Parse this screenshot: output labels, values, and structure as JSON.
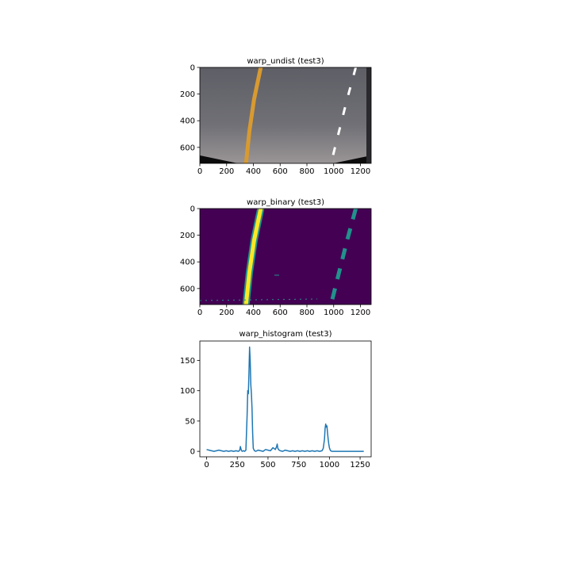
{
  "chart_data": [
    {
      "type": "image",
      "title": "warp_undist (test3)",
      "xlim": [
        0,
        1280
      ],
      "ylim": [
        720,
        0
      ],
      "xticks": [
        0,
        200,
        400,
        600,
        800,
        1000,
        1200
      ],
      "yticks": [
        0,
        200,
        400,
        600
      ],
      "colors": {
        "road_top": "#5b5b62",
        "road_bottom": "#8a8a90",
        "left_lane": "#d89a30",
        "right_lane": "#ffffff",
        "edge": "#111111"
      },
      "left_lane_x": [
        {
          "y": 0,
          "x": 455
        },
        {
          "y": 240,
          "x": 405
        },
        {
          "y": 480,
          "x": 370
        },
        {
          "y": 720,
          "x": 345
        }
      ],
      "right_lane_x": [
        {
          "y": 0,
          "x": 1165
        },
        {
          "y": 240,
          "x": 1100
        },
        {
          "y": 480,
          "x": 1040
        },
        {
          "y": 720,
          "x": 980
        }
      ]
    },
    {
      "type": "heatmap",
      "title": "warp_binary (test3)",
      "xlim": [
        0,
        1280
      ],
      "ylim": [
        720,
        0
      ],
      "xticks": [
        0,
        200,
        400,
        600,
        800,
        1000,
        1200
      ],
      "yticks": [
        0,
        200,
        400,
        600
      ],
      "colors": {
        "background": "#440154",
        "mid": "#21918c",
        "high": "#fde725"
      },
      "left_lane_x": [
        {
          "y": 0,
          "x": 455
        },
        {
          "y": 240,
          "x": 405
        },
        {
          "y": 480,
          "x": 370
        },
        {
          "y": 720,
          "x": 345
        }
      ],
      "right_lane_x": [
        {
          "y": 0,
          "x": 1165
        },
        {
          "y": 240,
          "x": 1100
        },
        {
          "y": 480,
          "x": 1040
        },
        {
          "y": 720,
          "x": 980
        }
      ]
    },
    {
      "type": "line",
      "title": "warp_histogram (test3)",
      "xlim": [
        -55,
        1340
      ],
      "ylim": [
        -9,
        182
      ],
      "xticks": [
        0,
        250,
        500,
        750,
        1000,
        1250
      ],
      "yticks": [
        0,
        50,
        100,
        150
      ],
      "color": "#1f77b4",
      "x": [
        0,
        20,
        40,
        60,
        80,
        100,
        120,
        140,
        160,
        180,
        200,
        220,
        240,
        260,
        270,
        275,
        280,
        285,
        290,
        300,
        310,
        320,
        330,
        335,
        340,
        345,
        350,
        355,
        360,
        365,
        370,
        375,
        380,
        390,
        400,
        420,
        440,
        460,
        480,
        500,
        520,
        540,
        560,
        570,
        575,
        580,
        590,
        600,
        620,
        640,
        660,
        680,
        700,
        720,
        740,
        760,
        780,
        800,
        820,
        840,
        860,
        880,
        900,
        920,
        940,
        950,
        960,
        965,
        970,
        975,
        980,
        985,
        990,
        995,
        1000,
        1005,
        1010,
        1020,
        1040,
        1060,
        1080,
        1100,
        1120,
        1140,
        1160,
        1180,
        1200,
        1220,
        1240,
        1260,
        1280
      ],
      "y": [
        3,
        2,
        1,
        0,
        1,
        2,
        1,
        0,
        1,
        0,
        1,
        0,
        1,
        0,
        2,
        8,
        4,
        1,
        0,
        1,
        0,
        2,
        60,
        100,
        95,
        130,
        172,
        150,
        110,
        95,
        70,
        30,
        5,
        1,
        0,
        2,
        1,
        0,
        3,
        2,
        1,
        6,
        3,
        8,
        12,
        5,
        2,
        1,
        0,
        2,
        1,
        0,
        1,
        0,
        1,
        0,
        1,
        0,
        1,
        0,
        1,
        0,
        1,
        0,
        1,
        5,
        20,
        38,
        45,
        40,
        42,
        30,
        20,
        12,
        6,
        3,
        1,
        0,
        0,
        0,
        0,
        0,
        0,
        0,
        0,
        0,
        0,
        0,
        0,
        0,
        0
      ]
    }
  ]
}
